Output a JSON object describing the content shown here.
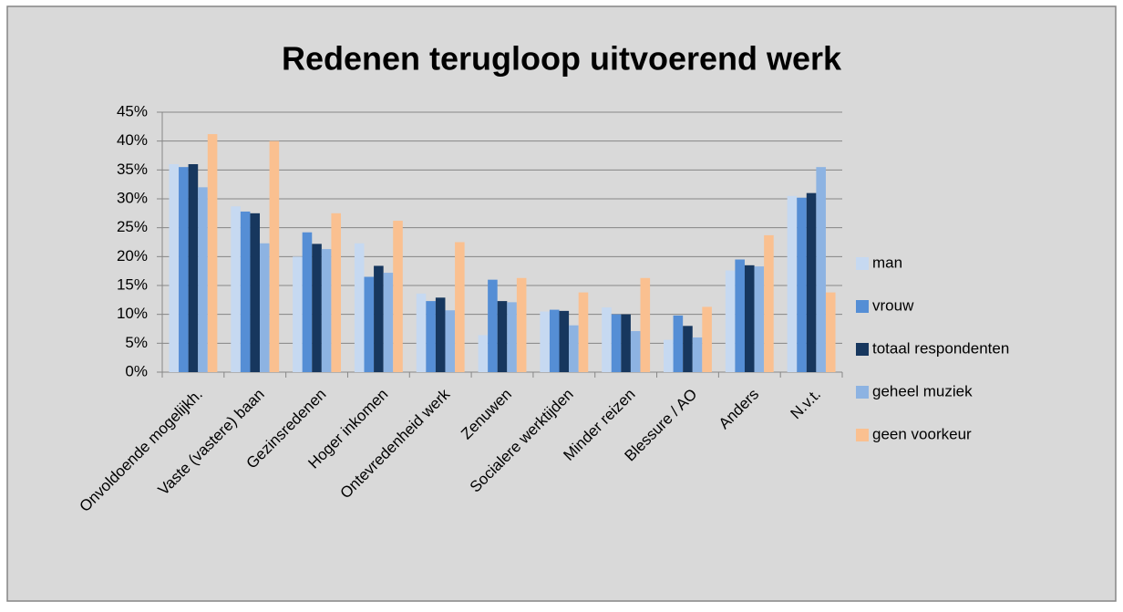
{
  "chart_data": {
    "type": "bar",
    "title": "Redenen terugloop uitvoerend werk",
    "categories": [
      "Onvoldoende mogelijkh.",
      "Vaste (vastere) baan",
      "Gezinsredenen",
      "Hoger inkomen",
      "Ontevredenheid werk",
      "Zenuwen",
      "Socialere werktijden",
      "Minder reizen",
      "Blessure / AO",
      "Anders",
      "N.v.t."
    ],
    "series": [
      {
        "name": "man",
        "color": "#c6d9f1",
        "values": [
          36,
          28.7,
          20,
          22.3,
          13.6,
          6.4,
          10.5,
          11.2,
          5.6,
          17.6,
          30.5
        ]
      },
      {
        "name": "vrouw",
        "color": "#558ed5",
        "values": [
          35.5,
          27.8,
          24.2,
          16.5,
          12.3,
          16,
          10.8,
          10,
          9.8,
          19.5,
          30.2
        ]
      },
      {
        "name": "totaal respondenten",
        "color": "#17375e",
        "values": [
          36,
          27.5,
          22.2,
          18.4,
          12.9,
          12.3,
          10.6,
          10,
          8,
          18.5,
          31
        ]
      },
      {
        "name": "geheel muziek",
        "color": "#8db3e2",
        "values": [
          32,
          22.3,
          21.3,
          17.2,
          10.7,
          12.1,
          8.1,
          7.1,
          6,
          18.3,
          35.5
        ]
      },
      {
        "name": "geen voorkeur",
        "color": "#fac090",
        "values": [
          41.2,
          40,
          27.5,
          26.2,
          22.5,
          16.3,
          13.8,
          16.3,
          11.3,
          23.7,
          13.8
        ]
      }
    ],
    "ylim": [
      0,
      45
    ],
    "yticks": [
      {
        "value": 0,
        "label": "0%"
      },
      {
        "value": 5,
        "label": "5%"
      },
      {
        "value": 10,
        "label": "10%"
      },
      {
        "value": 15,
        "label": "15%"
      },
      {
        "value": 20,
        "label": "20%"
      },
      {
        "value": 25,
        "label": "25%"
      },
      {
        "value": 30,
        "label": "30%"
      },
      {
        "value": 35,
        "label": "35%"
      },
      {
        "value": 40,
        "label": "40%"
      },
      {
        "value": 45,
        "label": "45%"
      }
    ],
    "grid": true,
    "legend": "right"
  }
}
